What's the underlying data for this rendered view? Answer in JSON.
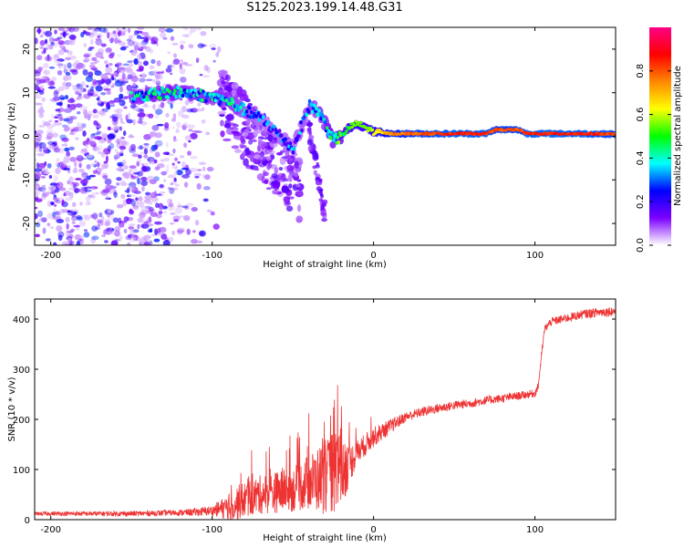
{
  "page": {
    "title": "S125.2023.199.14.48.G31"
  },
  "colorbar": {
    "label": "Normalized spectral amplitude",
    "ticks": [
      "0.0",
      "0.2",
      "0.4",
      "0.6",
      "0.8"
    ],
    "stops": [
      "#ffffff",
      "#7b00ff",
      "#0000ff",
      "#00ffff",
      "#00ff00",
      "#ffff00",
      "#ff8800",
      "#ff0000",
      "#ff0088"
    ]
  },
  "chart_data": [
    {
      "type": "heatmap",
      "title": "",
      "xlabel": "Height of straight line (km)",
      "ylabel": "Frequency (Hz)",
      "xlim": [
        -210,
        150
      ],
      "ylim": [
        -25,
        25
      ],
      "x_ticks": [
        -200,
        -100,
        0,
        100
      ],
      "y_ticks": [
        -20,
        -10,
        0,
        10,
        20
      ],
      "colorscale_range": [
        0,
        1
      ],
      "ridge": {
        "x": [
          -145,
          -130,
          -115,
          -100,
          -90,
          -80,
          -70,
          -60,
          -50,
          -40,
          -35,
          -30,
          -25,
          -20,
          -15,
          -10,
          -5,
          0,
          10,
          30,
          50,
          70,
          75,
          90,
          95,
          110,
          130,
          150
        ],
        "y": [
          9,
          10,
          10,
          9,
          8,
          6,
          4,
          1,
          -3,
          7,
          6,
          3,
          -1,
          0,
          2,
          3,
          2,
          1,
          0.6,
          0.6,
          0.6,
          0.6,
          1.5,
          1.5,
          0.6,
          0.6,
          0.6,
          0.5
        ],
        "amplitude": [
          0.3,
          0.35,
          0.3,
          0.3,
          0.3,
          0.25,
          0.2,
          0.2,
          0.2,
          0.25,
          0.3,
          0.3,
          0.4,
          0.45,
          0.5,
          0.55,
          0.55,
          0.6,
          0.75,
          0.8,
          0.85,
          0.85,
          0.8,
          0.8,
          0.85,
          0.85,
          0.85,
          0.8
        ]
      }
    },
    {
      "type": "line",
      "title": "",
      "xlabel": "Height of straight line (km)",
      "ylabel": "SNR (10 * v/v)",
      "xlim": [
        -210,
        150
      ],
      "ylim": [
        0,
        440
      ],
      "x_ticks": [
        -200,
        -100,
        0,
        100
      ],
      "y_ticks": [
        0,
        100,
        200,
        300,
        400
      ],
      "color": "#ee3333",
      "series": [
        {
          "x": [
            -210,
            -180,
            -150,
            -120,
            -110,
            -100,
            -90,
            -80,
            -75,
            -70,
            -60,
            -50,
            -40,
            -30,
            -25,
            -22,
            -20,
            -15,
            -10,
            -5,
            0,
            10,
            20,
            30,
            40,
            50,
            60,
            70,
            80,
            90,
            100,
            102,
            104,
            106,
            110,
            120,
            130,
            140,
            150
          ],
          "y": [
            12,
            12,
            12,
            14,
            15,
            18,
            25,
            40,
            45,
            50,
            55,
            60,
            75,
            85,
            95,
            100,
            105,
            110,
            135,
            150,
            165,
            185,
            205,
            215,
            222,
            228,
            232,
            238,
            242,
            247,
            252,
            265,
            325,
            380,
            395,
            402,
            410,
            414,
            416
          ]
        }
      ],
      "noise_amplitude": {
        "x": [
          -210,
          -120,
          -100,
          -85,
          -50,
          -40,
          -30,
          -20,
          -15,
          -10,
          0,
          10,
          20,
          100,
          104,
          150
        ],
        "y": [
          4,
          6,
          10,
          35,
          45,
          55,
          75,
          85,
          40,
          25,
          20,
          15,
          10,
          8,
          8,
          10
        ]
      }
    }
  ]
}
